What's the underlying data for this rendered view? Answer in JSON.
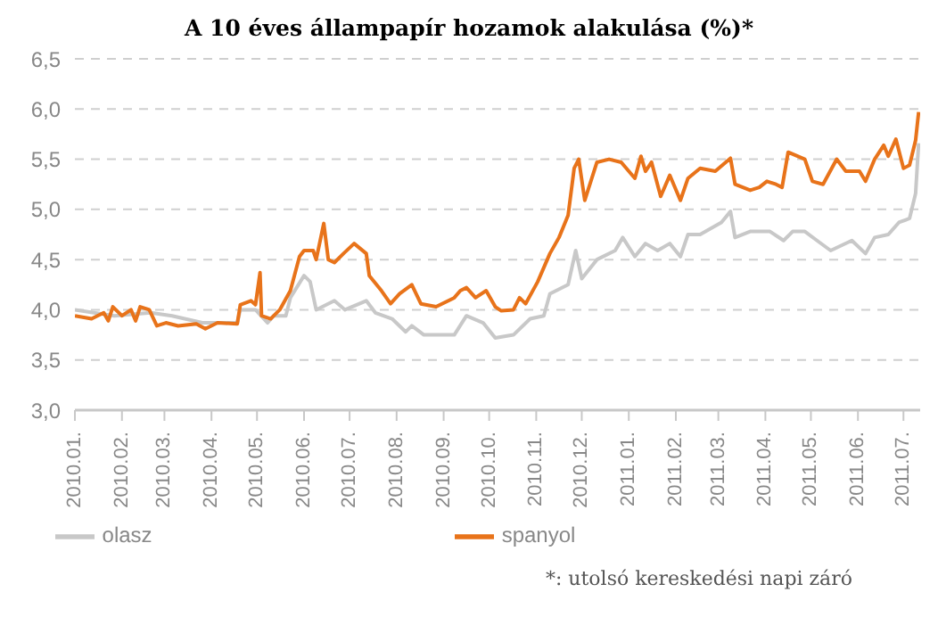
{
  "chart_data": {
    "type": "line",
    "title": "A 10 éves állampapír hozamok alakulása (%)*",
    "series": [
      {
        "name": "olasz",
        "color": "#c8c8c8",
        "x": [
          "2010-01-01",
          "2010-01-27",
          "2010-02-20",
          "2010-03-06",
          "2010-03-26",
          "2010-04-18",
          "2010-04-20",
          "2010-04-30",
          "2010-05-08",
          "2010-05-12",
          "2010-05-20",
          "2010-05-23",
          "2010-06-01",
          "2010-06-05",
          "2010-06-09",
          "2010-06-21",
          "2010-06-28",
          "2010-07-12",
          "2010-07-18",
          "2010-07-29",
          "2010-08-07",
          "2010-08-11",
          "2010-08-19",
          "2010-09-08",
          "2010-09-16",
          "2010-09-27",
          "2010-10-05",
          "2010-10-17",
          "2010-10-28",
          "2010-11-06",
          "2010-11-10",
          "2010-11-22",
          "2010-11-27",
          "2010-12-01",
          "2010-12-11",
          "2010-12-23",
          "2010-12-28",
          "2011-01-05",
          "2011-01-12",
          "2011-01-20",
          "2011-01-28",
          "2011-02-04",
          "2011-02-09",
          "2011-02-17",
          "2011-03-03",
          "2011-03-09",
          "2011-03-12",
          "2011-03-22",
          "2011-04-04",
          "2011-04-13",
          "2011-04-19",
          "2011-04-27",
          "2011-05-05",
          "2011-05-14",
          "2011-05-28",
          "2011-06-06",
          "2011-06-12",
          "2011-06-21",
          "2011-06-28",
          "2011-07-05",
          "2011-07-09",
          "2011-07-11"
        ],
        "values": [
          4.0,
          3.94,
          3.97,
          3.94,
          3.87,
          3.87,
          4.0,
          4.0,
          3.87,
          3.94,
          3.94,
          4.12,
          4.34,
          4.28,
          4.0,
          4.09,
          4.0,
          4.09,
          3.97,
          3.91,
          3.78,
          3.84,
          3.75,
          3.75,
          3.94,
          3.87,
          3.72,
          3.75,
          3.91,
          3.94,
          4.16,
          4.25,
          4.59,
          4.31,
          4.5,
          4.59,
          4.72,
          4.53,
          4.66,
          4.59,
          4.66,
          4.53,
          4.75,
          4.75,
          4.87,
          4.98,
          4.72,
          4.78,
          4.78,
          4.69,
          4.78,
          4.78,
          4.69,
          4.59,
          4.69,
          4.56,
          4.72,
          4.75,
          4.87,
          4.91,
          5.16,
          5.66
        ]
      },
      {
        "name": "spanyol",
        "color": "#e8731a",
        "x": [
          "2010-01-01",
          "2010-01-12",
          "2010-01-20",
          "2010-01-23",
          "2010-01-26",
          "2010-02-01",
          "2010-02-07",
          "2010-02-10",
          "2010-02-13",
          "2010-02-19",
          "2010-02-24",
          "2010-03-02",
          "2010-03-10",
          "2010-03-22",
          "2010-03-28",
          "2010-04-05",
          "2010-04-18",
          "2010-04-20",
          "2010-04-27",
          "2010-04-30",
          "2010-05-03",
          "2010-05-04",
          "2010-05-10",
          "2010-05-16",
          "2010-05-23",
          "2010-05-29",
          "2010-06-01",
          "2010-06-07",
          "2010-06-09",
          "2010-06-14",
          "2010-06-17",
          "2010-06-21",
          "2010-06-27",
          "2010-07-04",
          "2010-07-12",
          "2010-07-14",
          "2010-07-22",
          "2010-07-28",
          "2010-08-03",
          "2010-08-11",
          "2010-08-17",
          "2010-08-27",
          "2010-09-08",
          "2010-09-12",
          "2010-09-16",
          "2010-09-22",
          "2010-09-29",
          "2010-10-05",
          "2010-10-09",
          "2010-10-17",
          "2010-10-21",
          "2010-10-25",
          "2010-11-02",
          "2010-11-10",
          "2010-11-16",
          "2010-11-22",
          "2010-11-26",
          "2010-11-29",
          "2010-12-03",
          "2010-12-11",
          "2010-12-19",
          "2010-12-27",
          "2011-01-05",
          "2011-01-09",
          "2011-01-12",
          "2011-01-16",
          "2011-01-22",
          "2011-01-28",
          "2011-02-04",
          "2011-02-09",
          "2011-02-17",
          "2011-02-27",
          "2011-03-09",
          "2011-03-12",
          "2011-03-22",
          "2011-03-28",
          "2011-04-02",
          "2011-04-08",
          "2011-04-12",
          "2011-04-16",
          "2011-04-27",
          "2011-05-02",
          "2011-05-09",
          "2011-05-18",
          "2011-05-24",
          "2011-06-02",
          "2011-06-06",
          "2011-06-12",
          "2011-06-18",
          "2011-06-21",
          "2011-06-26",
          "2011-07-01",
          "2011-07-05",
          "2011-07-09",
          "2011-07-11"
        ],
        "values": [
          3.94,
          3.91,
          3.97,
          3.89,
          4.03,
          3.94,
          4.0,
          3.89,
          4.03,
          4.0,
          3.84,
          3.87,
          3.84,
          3.86,
          3.81,
          3.87,
          3.86,
          4.05,
          4.09,
          4.05,
          4.37,
          3.94,
          3.91,
          4.0,
          4.19,
          4.53,
          4.59,
          4.59,
          4.5,
          4.86,
          4.5,
          4.47,
          4.56,
          4.66,
          4.56,
          4.34,
          4.19,
          4.06,
          4.16,
          4.25,
          4.06,
          4.03,
          4.12,
          4.19,
          4.22,
          4.12,
          4.19,
          4.03,
          3.99,
          4.0,
          4.12,
          4.06,
          4.28,
          4.56,
          4.72,
          4.94,
          5.41,
          5.5,
          5.09,
          5.47,
          5.5,
          5.47,
          5.31,
          5.53,
          5.38,
          5.47,
          5.13,
          5.34,
          5.09,
          5.31,
          5.41,
          5.38,
          5.51,
          5.25,
          5.19,
          5.22,
          5.28,
          5.25,
          5.22,
          5.57,
          5.5,
          5.28,
          5.25,
          5.5,
          5.38,
          5.38,
          5.28,
          5.5,
          5.64,
          5.53,
          5.7,
          5.41,
          5.44,
          5.69,
          5.97
        ]
      }
    ],
    "xlim": [
      "2010-01-01",
      "2011-07-12"
    ],
    "xticks": [
      {
        "value": "2010-01-01",
        "label": "2010.01."
      },
      {
        "value": "2010-02-01",
        "label": "2010.02."
      },
      {
        "value": "2010-03-01",
        "label": "2010.03."
      },
      {
        "value": "2010-04-01",
        "label": "2010.04."
      },
      {
        "value": "2010-05-01",
        "label": "2010.05."
      },
      {
        "value": "2010-06-01",
        "label": "2010.06."
      },
      {
        "value": "2010-07-01",
        "label": "2010.07."
      },
      {
        "value": "2010-08-01",
        "label": "2010.08."
      },
      {
        "value": "2010-09-01",
        "label": "2010.09."
      },
      {
        "value": "2010-10-01",
        "label": "2010.10."
      },
      {
        "value": "2010-11-01",
        "label": "2010.11."
      },
      {
        "value": "2010-12-01",
        "label": "2010.12."
      },
      {
        "value": "2011-01-01",
        "label": "2011.01."
      },
      {
        "value": "2011-02-01",
        "label": "2011.02."
      },
      {
        "value": "2011-03-01",
        "label": "2011.03."
      },
      {
        "value": "2011-04-01",
        "label": "2011.04."
      },
      {
        "value": "2011-05-01",
        "label": "2011.05."
      },
      {
        "value": "2011-06-01",
        "label": "2011.06."
      },
      {
        "value": "2011-07-01",
        "label": "2011.07."
      }
    ],
    "ylim": [
      3,
      6.5
    ],
    "yticks": [
      {
        "value": 3,
        "label": "3,0"
      },
      {
        "value": 3.5,
        "label": "3,5"
      },
      {
        "value": 4,
        "label": "4,0"
      },
      {
        "value": 4.5,
        "label": "4,5"
      },
      {
        "value": 5,
        "label": "5,0"
      },
      {
        "value": 5.5,
        "label": "5,5"
      },
      {
        "value": 6,
        "label": "6,0"
      },
      {
        "value": 6.5,
        "label": "6,5"
      }
    ],
    "grid": "y",
    "legend": "bottom",
    "marker": "none",
    "line_style": "solid",
    "annotations": [
      "*: utolsó kereskedési napi záró"
    ]
  }
}
